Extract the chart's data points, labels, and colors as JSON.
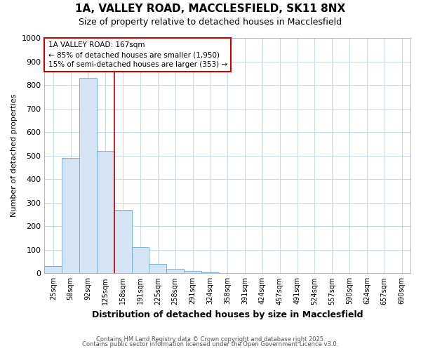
{
  "title_line1": "1A, VALLEY ROAD, MACCLESFIELD, SK11 8NX",
  "title_line2": "Size of property relative to detached houses in Macclesfield",
  "xlabel": "Distribution of detached houses by size in Macclesfield",
  "ylabel": "Number of detached properties",
  "categories": [
    "25sqm",
    "58sqm",
    "92sqm",
    "125sqm",
    "158sqm",
    "191sqm",
    "225sqm",
    "258sqm",
    "291sqm",
    "324sqm",
    "358sqm",
    "391sqm",
    "424sqm",
    "457sqm",
    "491sqm",
    "524sqm",
    "557sqm",
    "590sqm",
    "624sqm",
    "657sqm",
    "690sqm"
  ],
  "values": [
    30,
    490,
    830,
    520,
    270,
    110,
    40,
    20,
    10,
    5,
    0,
    0,
    0,
    0,
    0,
    0,
    0,
    0,
    0,
    0,
    0
  ],
  "bar_color": "#d4e4f4",
  "bar_edge_color": "#7ab0d8",
  "red_line_x": 3.5,
  "red_line_color": "#cc0000",
  "annotation_title": "1A VALLEY ROAD: 167sqm",
  "annotation_line1": "← 85% of detached houses are smaller (1,950)",
  "annotation_line2": "15% of semi-detached houses are larger (353) →",
  "annotation_box_color": "#ffffff",
  "annotation_box_edge_color": "#cc0000",
  "ylim": [
    0,
    1000
  ],
  "yticks": [
    0,
    100,
    200,
    300,
    400,
    500,
    600,
    700,
    800,
    900,
    1000
  ],
  "bg_color": "#ffffff",
  "plot_bg_color": "#ffffff",
  "grid_color": "#c8d8e8",
  "footer_line1": "Contains HM Land Registry data © Crown copyright and database right 2025.",
  "footer_line2": "Contains public sector information licensed under the Open Government Licence v3.0."
}
